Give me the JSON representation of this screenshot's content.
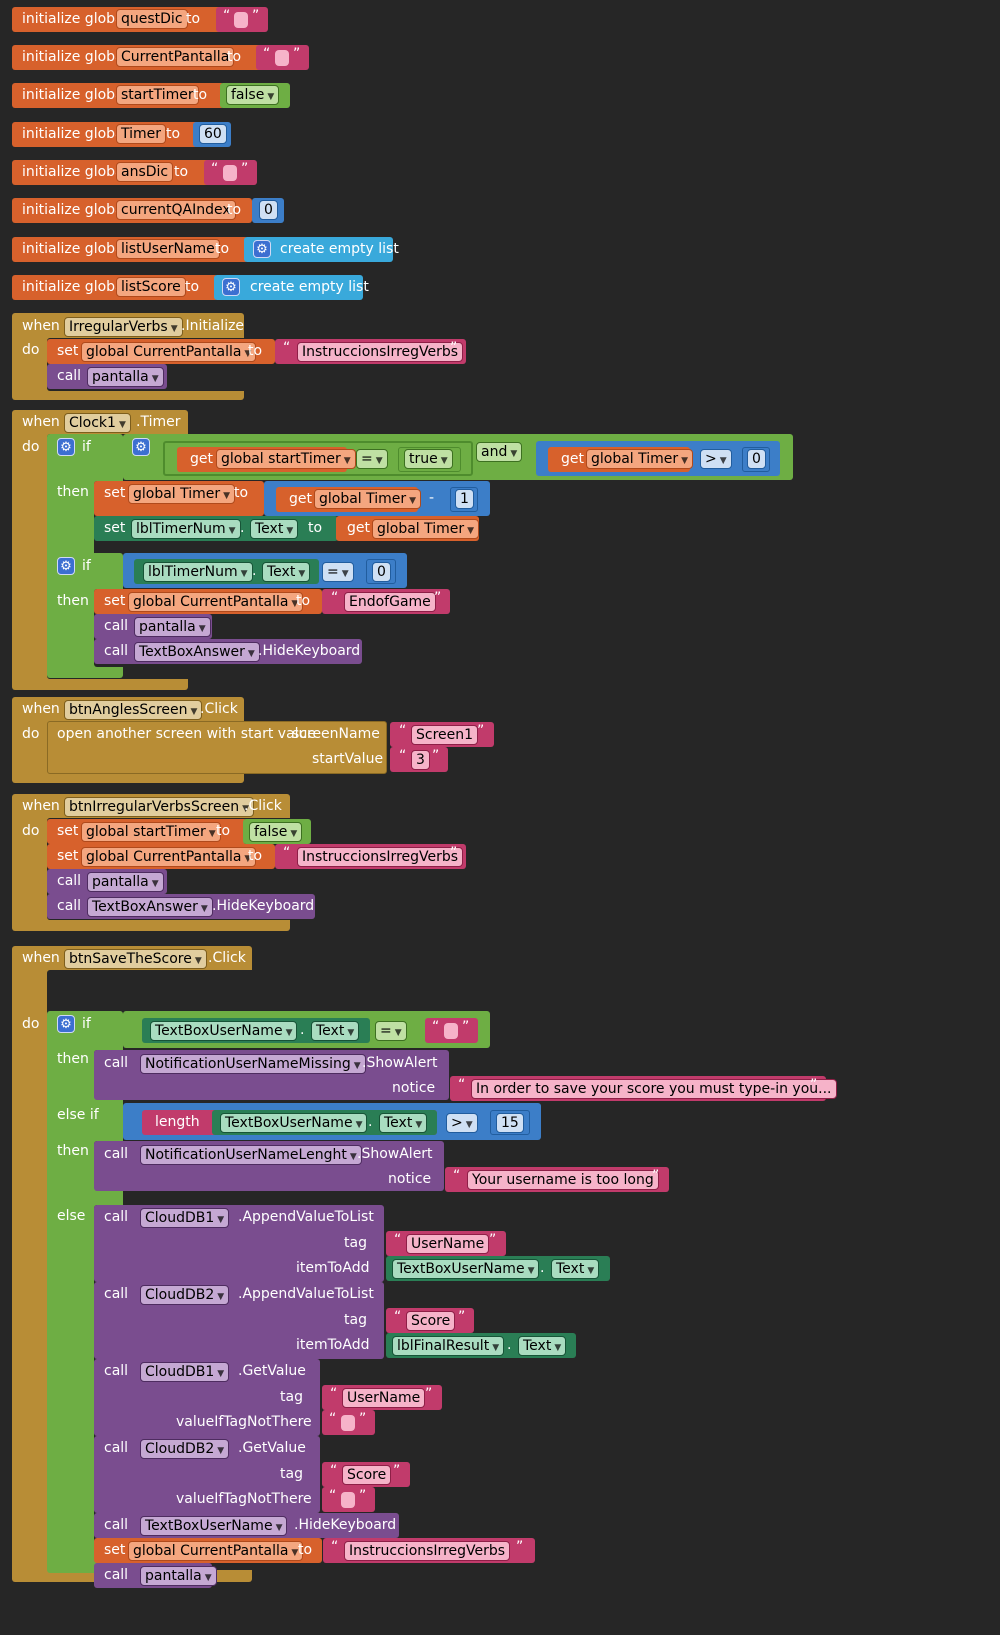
{
  "kw": {
    "init": "initialize global",
    "to": "to",
    "when": "when",
    "do": "do",
    "set": "set",
    "call": "call",
    "get": "get",
    "if": "if",
    "then": "then",
    "elseif": "else if",
    "else": "else",
    "and": "and",
    "dot": ".",
    "minus": "-",
    "eq": "=",
    "gt": ">",
    "q1": "“",
    "q2": "”",
    "dd": "▼",
    "gear": "⚙",
    "notice": "notice",
    "tag": "tag",
    "itemToAdd": "itemToAdd",
    "valueIfTagNotThere": "valueIfTagNotThere",
    "screenName": "screenName",
    "startValue": "startValue",
    "openScreen": "open another screen with start value",
    "createEmpty": "create empty list",
    "length": "length",
    "textProp": "Text",
    "valTrue": "true",
    "valFalse": "false"
  },
  "globals": [
    {
      "name": "questDic",
      "type": "text",
      "value": ""
    },
    {
      "name": "CurrentPantalla",
      "type": "text",
      "value": ""
    },
    {
      "name": "startTimer",
      "type": "bool",
      "value": "false"
    },
    {
      "name": "Timer",
      "type": "num",
      "value": "60"
    },
    {
      "name": "ansDic",
      "type": "text",
      "value": ""
    },
    {
      "name": "currentQAIndex",
      "type": "num",
      "value": "0"
    },
    {
      "name": "listUserName",
      "type": "list",
      "value": "create empty list"
    },
    {
      "name": "listScore",
      "type": "list",
      "value": "create empty list"
    }
  ],
  "ev1": {
    "component": "IrregularVerbs",
    "event": ".Initialize",
    "var": "global CurrentPantalla",
    "str": "InstruccionsIrregVerbs",
    "proc": "pantalla"
  },
  "ev2": {
    "component": "Clock1",
    "event": ".Timer",
    "getStart": "global startTimer",
    "getTimer": "global Timer",
    "zero": "0",
    "setVar": "global Timer",
    "one": "1",
    "labelComp": "lblTimerNum",
    "endStr": "EndofGame",
    "setPant": "global CurrentPantalla",
    "proc": "pantalla",
    "textbox": "TextBoxAnswer",
    "hide": ".HideKeyboard"
  },
  "ev3": {
    "component": "btnAnglesScreen",
    "event": ".Click",
    "screen": "Screen1",
    "start": "3"
  },
  "ev4": {
    "component": "btnIrregularVerbsScreen",
    "event": ".Click",
    "var1": "global startTimer",
    "var2": "global CurrentPantalla",
    "str": "InstruccionsIrregVerbs",
    "proc": "pantalla",
    "textbox": "TextBoxAnswer",
    "hide": ".HideKeyboard"
  },
  "ev5": {
    "component": "btnSaveTheScore",
    "event": ".Click",
    "tbUser": "TextBoxUserName",
    "notif1": "NotificationUserNameMissing",
    "notif2": "NotificationUserNameLenght",
    "show": ".ShowAlert",
    "msg1": "In order to save your score you must type-in you...",
    "msg2": "Your username is too long",
    "max": "15",
    "db1": "CloudDB1",
    "db2": "CloudDB2",
    "append": ".AppendValueToList",
    "getValue": ".GetValue",
    "tagUser": "UserName",
    "tagScore": "Score",
    "result": "lblFinalResult",
    "hide": ".HideKeyboard",
    "var": "global CurrentPantalla",
    "str": "InstruccionsIrregVerbs",
    "proc": "pantalla"
  },
  "colors": {
    "procedures": "#7a4d8f",
    "variables": "#d7612c",
    "text": "#c13b6b",
    "logic": "#6eae44",
    "math": "#3c7ec8",
    "lists": "#39a9db",
    "events": "#b88d36",
    "components": "#2a7e55",
    "background": "#262626"
  }
}
